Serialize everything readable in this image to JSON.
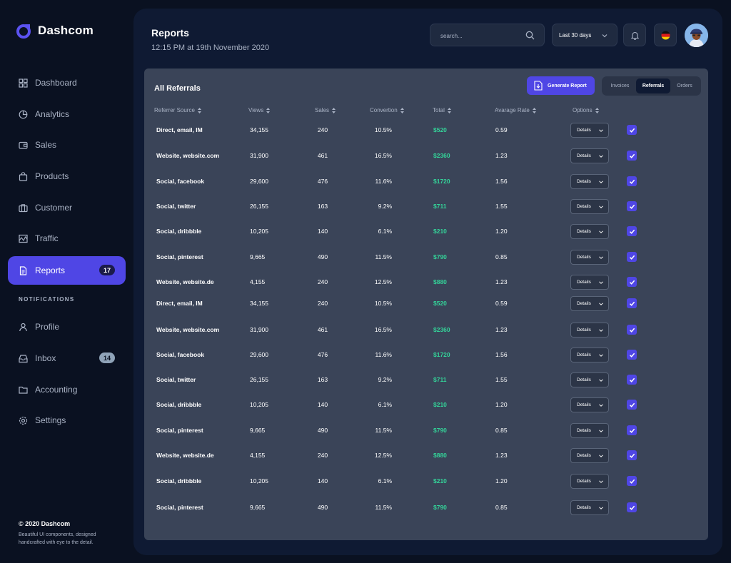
{
  "brand": {
    "name": "Dashcom"
  },
  "sidebar": {
    "items": [
      {
        "label": "Dashboard",
        "icon": "grid-icon"
      },
      {
        "label": "Analytics",
        "icon": "pie-chart-icon"
      },
      {
        "label": "Sales",
        "icon": "wallet-icon"
      },
      {
        "label": "Products",
        "icon": "bag-icon"
      },
      {
        "label": "Customer",
        "icon": "briefcase-icon"
      },
      {
        "label": "Traffic",
        "icon": "activity-icon"
      },
      {
        "label": "Reports",
        "icon": "document-icon",
        "badge": "17",
        "active": true
      }
    ],
    "section_label": "NOTIFICATIONS",
    "items2": [
      {
        "label": "Profile",
        "icon": "user-icon"
      },
      {
        "label": "Inbox",
        "icon": "inbox-icon",
        "badge": "14"
      },
      {
        "label": "Accounting",
        "icon": "folder-icon"
      },
      {
        "label": "Settings",
        "icon": "gear-icon"
      }
    ],
    "footer": {
      "copyright": "© 2020 Dashcom",
      "description": "Beautiful UI components, designed handcrafted with eye to the detail."
    }
  },
  "header": {
    "title": "Reports",
    "subtitle": "12:15 PM at 19th November 2020",
    "search_placeholder": "search...",
    "range_label": "Last 30 days"
  },
  "colors": {
    "accent": "#4f46e5",
    "positive": "#34d399",
    "panel": "#0f1a33",
    "card": "#3a4458"
  },
  "card": {
    "title": "All Referrals",
    "generate_label": "Generate Report",
    "tabs": [
      "Invoices",
      "Referrals",
      "Orders"
    ],
    "active_tab": "Referrals",
    "columns": [
      "Referrer Source",
      "Views",
      "Sales",
      "Convertion",
      "Total",
      "Avarage Rate",
      "Options"
    ],
    "details_label": "Details",
    "rows": [
      {
        "source": "Direct, email, IM",
        "views": "34,155",
        "sales": "240",
        "conversion": "10.5%",
        "total": "$520",
        "rate": "0.59"
      },
      {
        "source": "Website, website.com",
        "views": "31,900",
        "sales": "461",
        "conversion": "16.5%",
        "total": "$2360",
        "rate": "1.23"
      },
      {
        "source": "Social, facebook",
        "views": "29,600",
        "sales": "476",
        "conversion": "11.6%",
        "total": "$1720",
        "rate": "1.56"
      },
      {
        "source": "Social, twitter",
        "views": "26,155",
        "sales": "163",
        "conversion": "9.2%",
        "total": "$711",
        "rate": "1.55"
      },
      {
        "source": "Social, dribbble",
        "views": "10,205",
        "sales": "140",
        "conversion": "6.1%",
        "total": "$210",
        "rate": "1.20"
      },
      {
        "source": "Social, pinterest",
        "views": "9,665",
        "sales": "490",
        "conversion": "11.5%",
        "total": "$790",
        "rate": "0.85"
      },
      {
        "source": "Website, website.de",
        "views": "4,155",
        "sales": "240",
        "conversion": "12.5%",
        "total": "$880",
        "rate": "1.23"
      },
      {
        "source": "Direct, email, IM",
        "views": "34,155",
        "sales": "240",
        "conversion": "10.5%",
        "total": "$520",
        "rate": "0.59"
      },
      {
        "source": "Website, website.com",
        "views": "31,900",
        "sales": "461",
        "conversion": "16.5%",
        "total": "$2360",
        "rate": "1.23"
      },
      {
        "source": "Social, facebook",
        "views": "29,600",
        "sales": "476",
        "conversion": "11.6%",
        "total": "$1720",
        "rate": "1.56"
      },
      {
        "source": "Social, twitter",
        "views": "26,155",
        "sales": "163",
        "conversion": "9.2%",
        "total": "$711",
        "rate": "1.55"
      },
      {
        "source": "Social, dribbble",
        "views": "10,205",
        "sales": "140",
        "conversion": "6.1%",
        "total": "$210",
        "rate": "1.20"
      },
      {
        "source": "Social, pinterest",
        "views": "9,665",
        "sales": "490",
        "conversion": "11.5%",
        "total": "$790",
        "rate": "0.85"
      },
      {
        "source": "Website, website.de",
        "views": "4,155",
        "sales": "240",
        "conversion": "12.5%",
        "total": "$880",
        "rate": "1.23"
      },
      {
        "source": "Social, dribbble",
        "views": "10,205",
        "sales": "140",
        "conversion": "6.1%",
        "total": "$210",
        "rate": "1.20"
      },
      {
        "source": "Social, pinterest",
        "views": "9,665",
        "sales": "490",
        "conversion": "11.5%",
        "total": "$790",
        "rate": "0.85"
      }
    ]
  }
}
